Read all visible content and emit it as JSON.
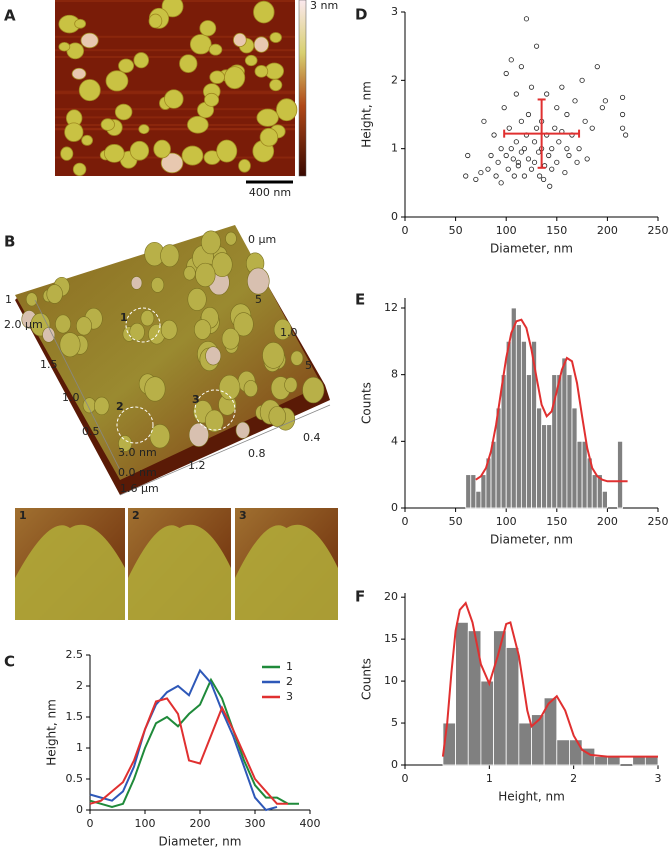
{
  "panels": {
    "A": {
      "label": "A",
      "colorbar_max": "3 nm",
      "scalebar": "400 nm"
    },
    "B": {
      "label": "B",
      "axis_labels": [
        "2.0 µm",
        "1.5",
        "1.0",
        "0.5",
        "3.0 nm",
        "0.0 nm",
        "1.6 µm",
        "1.2",
        "0.8",
        "0.4",
        "0 µm",
        "5",
        "1.0",
        "5",
        "1"
      ],
      "particle_labels": [
        "1",
        "2",
        "3"
      ],
      "insets": [
        "1",
        "2",
        "3"
      ]
    }
  },
  "chart_data": [
    {
      "type": "line",
      "label": "C",
      "xlabel": "Diameter, nm",
      "ylabel": "Height, nm",
      "xlim": [
        0,
        400
      ],
      "xticks": [
        0,
        100,
        200,
        300,
        400
      ],
      "ylim": [
        0,
        2.5
      ],
      "yticks": [
        0,
        0.5,
        1,
        1.5,
        2,
        2.5
      ],
      "legend": "upper right",
      "series": [
        {
          "name": "1",
          "color": "#1f8a3a",
          "x": [
            0,
            20,
            40,
            60,
            80,
            100,
            120,
            140,
            160,
            180,
            200,
            220,
            240,
            260,
            280,
            300,
            320,
            340,
            360,
            380
          ],
          "y": [
            0.15,
            0.1,
            0.05,
            0.1,
            0.5,
            1.0,
            1.4,
            1.5,
            1.35,
            1.55,
            1.7,
            2.1,
            1.8,
            1.3,
            0.8,
            0.4,
            0.2,
            0.2,
            0.1,
            0.1
          ]
        },
        {
          "name": "2",
          "color": "#2e58b8",
          "x": [
            0,
            20,
            40,
            60,
            80,
            100,
            120,
            140,
            160,
            180,
            200,
            220,
            240,
            260,
            280,
            300,
            320,
            340
          ],
          "y": [
            0.25,
            0.2,
            0.15,
            0.3,
            0.7,
            1.3,
            1.7,
            1.9,
            2.0,
            1.85,
            2.25,
            2.05,
            1.6,
            1.2,
            0.7,
            0.2,
            0.0,
            0.05
          ]
        },
        {
          "name": "3",
          "color": "#e03030",
          "x": [
            0,
            20,
            40,
            60,
            80,
            100,
            120,
            140,
            160,
            180,
            200,
            220,
            240,
            260,
            280,
            300,
            320,
            340,
            360
          ],
          "y": [
            0.1,
            0.15,
            0.3,
            0.45,
            0.8,
            1.3,
            1.75,
            1.8,
            1.55,
            0.8,
            0.75,
            1.2,
            1.65,
            1.3,
            0.9,
            0.5,
            0.3,
            0.1,
            0.1
          ]
        }
      ]
    },
    {
      "type": "scatter",
      "label": "D",
      "xlabel": "Diameter, nm",
      "ylabel": "Height, nm",
      "xlim": [
        0,
        250
      ],
      "xticks": [
        0,
        50,
        100,
        150,
        200,
        250
      ],
      "ylim": [
        0,
        3
      ],
      "yticks": [
        0,
        1,
        2,
        3
      ],
      "color": "#222222",
      "x": [
        60,
        62,
        70,
        75,
        78,
        82,
        85,
        88,
        90,
        92,
        95,
        95,
        98,
        100,
        100,
        102,
        103,
        105,
        105,
        107,
        108,
        110,
        110,
        112,
        112,
        115,
        115,
        115,
        118,
        118,
        120,
        120,
        122,
        122,
        125,
        125,
        128,
        128,
        130,
        130,
        132,
        133,
        135,
        135,
        137,
        138,
        140,
        140,
        142,
        143,
        145,
        145,
        148,
        150,
        150,
        152,
        155,
        155,
        158,
        160,
        160,
        162,
        165,
        168,
        170,
        172,
        175,
        178,
        180,
        185,
        190,
        195,
        198,
        215,
        215,
        215,
        218
      ],
      "y": [
        0.6,
        0.9,
        0.55,
        0.65,
        1.4,
        0.7,
        0.9,
        1.2,
        0.6,
        0.8,
        0.5,
        1.0,
        1.6,
        2.1,
        0.9,
        0.7,
        1.3,
        2.3,
        1.0,
        0.85,
        0.6,
        1.8,
        1.1,
        0.8,
        0.75,
        2.2,
        1.4,
        0.95,
        0.6,
        1.0,
        2.9,
        1.2,
        1.5,
        0.85,
        1.9,
        0.7,
        1.1,
        0.8,
        2.5,
        1.3,
        0.95,
        0.6,
        1.4,
        1.0,
        0.55,
        0.75,
        1.8,
        1.2,
        0.9,
        0.45,
        1.0,
        0.7,
        1.3,
        1.6,
        0.8,
        1.1,
        1.9,
        1.25,
        0.65,
        1.5,
        1.0,
        0.9,
        1.2,
        1.7,
        0.8,
        1.0,
        2.0,
        1.4,
        0.85,
        1.3,
        2.2,
        1.6,
        1.7,
        1.75,
        1.5,
        1.3,
        1.2
      ],
      "mean": {
        "x": 135,
        "y": 1.22,
        "x_error": 37,
        "y_error": 0.5,
        "color": "#e03030"
      }
    },
    {
      "type": "histogram",
      "label": "E",
      "xlabel": "Diameter, nm",
      "ylabel": "Counts",
      "xlim": [
        0,
        250
      ],
      "xticks": [
        0,
        50,
        100,
        150,
        200,
        250
      ],
      "ylim": [
        0,
        12.6
      ],
      "yticks": [
        0,
        4,
        8,
        12
      ],
      "color": "#808080",
      "bins": [
        60,
        65,
        70,
        75,
        80,
        85,
        90,
        95,
        100,
        105,
        110,
        115,
        120,
        125,
        130,
        135,
        140,
        145,
        150,
        155,
        160,
        165,
        170,
        175,
        180,
        185,
        190,
        195,
        200,
        205,
        210,
        215,
        220
      ],
      "counts": [
        2,
        2,
        1,
        2,
        3,
        4,
        6,
        8,
        10,
        12,
        11,
        10,
        8,
        10,
        6,
        5,
        5,
        8,
        8,
        9,
        8,
        6,
        4,
        4,
        3,
        2,
        2,
        1,
        0,
        0,
        4,
        0
      ],
      "fit": {
        "color": "#e03030",
        "x": [
          70,
          75,
          80,
          85,
          90,
          95,
          100,
          105,
          110,
          115,
          120,
          125,
          130,
          135,
          140,
          145,
          150,
          155,
          160,
          165,
          170,
          175,
          180,
          185,
          190,
          195,
          200,
          205,
          210,
          215,
          220
        ],
        "y": [
          1.7,
          1.9,
          2.4,
          3.4,
          5.0,
          7.0,
          9.0,
          10.5,
          11.2,
          11.3,
          10.8,
          9.5,
          7.8,
          6.2,
          5.5,
          5.8,
          7.0,
          8.3,
          9.0,
          8.8,
          7.5,
          5.5,
          3.6,
          2.4,
          1.9,
          1.7,
          1.6,
          1.6,
          1.6,
          1.6,
          1.6
        ]
      }
    },
    {
      "type": "histogram",
      "label": "F",
      "xlabel": "Height, nm",
      "ylabel": "Counts",
      "xlim": [
        0,
        3
      ],
      "xticks": [
        0,
        1,
        2,
        3
      ],
      "ylim": [
        0,
        20.5
      ],
      "yticks": [
        0,
        5,
        10,
        15,
        20
      ],
      "color": "#808080",
      "bins": [
        0.45,
        0.6,
        0.75,
        0.9,
        1.05,
        1.2,
        1.35,
        1.5,
        1.65,
        1.8,
        1.95,
        2.1,
        2.25,
        2.4,
        2.55,
        2.7,
        2.85,
        3.0
      ],
      "counts": [
        5,
        17,
        16,
        10,
        16,
        14,
        5,
        6,
        8,
        3,
        3,
        2,
        1,
        1,
        0,
        1,
        1
      ],
      "fit": {
        "color": "#e03030",
        "x": [
          0.45,
          0.5,
          0.55,
          0.6,
          0.65,
          0.72,
          0.8,
          0.9,
          1.0,
          1.1,
          1.2,
          1.25,
          1.35,
          1.45,
          1.5,
          1.6,
          1.7,
          1.8,
          1.9,
          2.0,
          2.1,
          2.2,
          2.4,
          3.0
        ],
        "y": [
          1,
          5,
          11,
          16,
          18.5,
          19.3,
          17,
          12,
          9.7,
          13,
          16.8,
          17,
          13,
          6.5,
          4.6,
          5.5,
          7.3,
          8.2,
          6.5,
          3.5,
          1.8,
          1.2,
          1,
          1
        ]
      }
    }
  ]
}
